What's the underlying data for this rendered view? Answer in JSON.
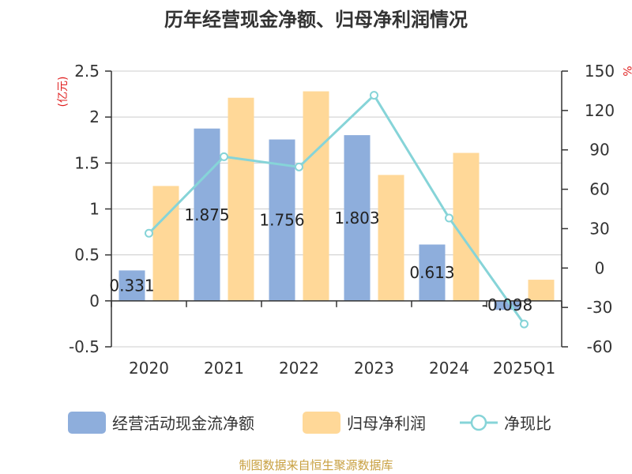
{
  "chart_data": {
    "type": "bar",
    "title": "历年经营现金净额、归母净利润情况",
    "categories": [
      "2020",
      "2021",
      "2022",
      "2023",
      "2024",
      "2025Q1"
    ],
    "series": [
      {
        "name": "经营活动现金流净额",
        "kind": "bar",
        "axis": "left",
        "color": "#8eaedc",
        "values": [
          0.331,
          1.875,
          1.756,
          1.803,
          0.613,
          -0.098
        ],
        "labels": [
          "0.331",
          "1.875",
          "1.756",
          "1.803",
          "0.613",
          "-0.098"
        ]
      },
      {
        "name": "归母净利润",
        "kind": "bar",
        "axis": "left",
        "color": "#ffd898",
        "values": [
          1.25,
          2.21,
          2.28,
          1.37,
          1.61,
          0.23
        ]
      },
      {
        "name": "净现比",
        "kind": "line",
        "axis": "right",
        "color": "#86d4d8",
        "values": [
          26.5,
          84.8,
          77.0,
          131.6,
          38.1,
          -42.6
        ]
      }
    ],
    "y_left": {
      "unit": "(亿元)",
      "min": -0.5,
      "max": 2.5,
      "ticks": [
        "-0.5",
        "0",
        "0.5",
        "1",
        "1.5",
        "2",
        "2.5"
      ]
    },
    "y_right": {
      "unit": "%",
      "min": -60,
      "max": 150,
      "ticks": [
        "-60",
        "-30",
        "0",
        "30",
        "60",
        "90",
        "120",
        "150"
      ]
    },
    "grid": true,
    "legend_position": "bottom",
    "source": "制图数据来自恒生聚源数据库"
  },
  "colors": {
    "unit_red": "#e02020",
    "source_gold": "#c8a040",
    "grid": "#cccccc",
    "axis": "#333333"
  }
}
